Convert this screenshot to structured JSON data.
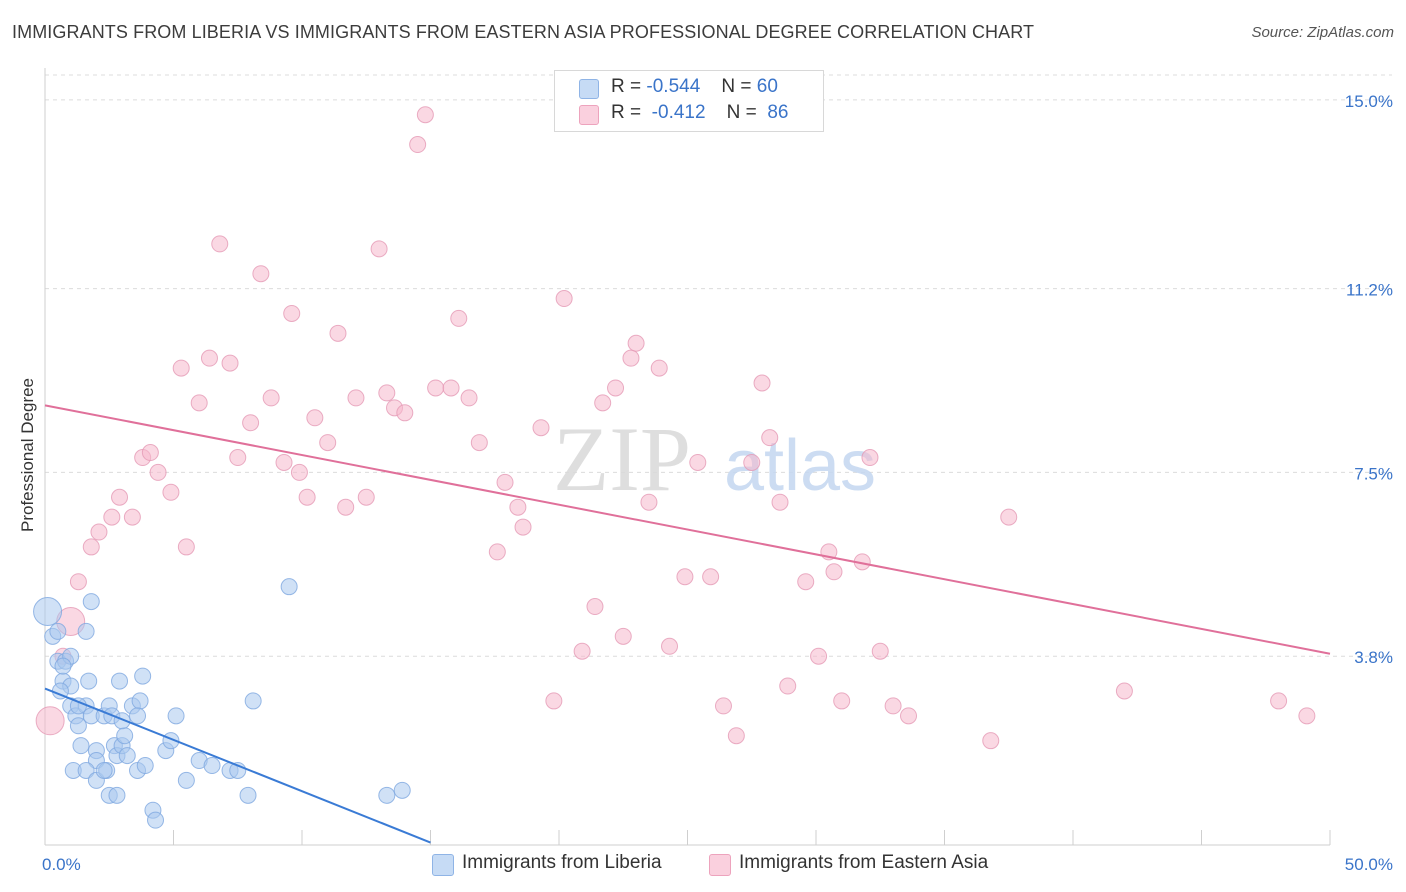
{
  "title": "IMMIGRANTS FROM LIBERIA VS IMMIGRANTS FROM EASTERN ASIA PROFESSIONAL DEGREE CORRELATION CHART",
  "source": "Source: ZipAtlas.com",
  "watermark": {
    "zip": "ZIP",
    "atlas": "atlas"
  },
  "legend": {
    "r_label": "R =",
    "n_label": "N =",
    "rows": [
      {
        "r": "-0.544",
        "n": "60",
        "color": "#a9c8ef"
      },
      {
        "r": "-0.412",
        "n": "86",
        "color": "#f5b8cc"
      }
    ]
  },
  "bottom_legend": [
    {
      "label": "Immigrants from Liberia",
      "color": "#a9c8ef"
    },
    {
      "label": "Immigrants from Eastern Asia",
      "color": "#f5b8cc"
    }
  ],
  "chart_data": {
    "type": "scatter",
    "ylabel": "Professional Degree",
    "xlim": [
      0,
      50
    ],
    "ylim": [
      0,
      15.5
    ],
    "x_tick_labels": [
      {
        "value": 0,
        "label": "0.0%"
      },
      {
        "value": 50,
        "label": "50.0%"
      }
    ],
    "y_tick_labels": [
      {
        "value": 3.8,
        "label": "3.8%"
      },
      {
        "value": 7.5,
        "label": "7.5%"
      },
      {
        "value": 11.2,
        "label": "11.2%"
      },
      {
        "value": 15.0,
        "label": "15.0%"
      }
    ],
    "grid": true,
    "colors": {
      "liberia": "#3a7bd5",
      "liberia_fill": "#a9c8ef",
      "easia": "#e0709a",
      "easia_fill": "#f5b8cc",
      "tick_text": "#3a74c9"
    },
    "series": [
      {
        "name": "Immigrants from Liberia",
        "points": [
          [
            0.1,
            4.7
          ],
          [
            0.3,
            4.2
          ],
          [
            0.5,
            4.3
          ],
          [
            0.5,
            3.7
          ],
          [
            0.8,
            3.7
          ],
          [
            1.0,
            3.8
          ],
          [
            0.7,
            3.3
          ],
          [
            1.0,
            3.2
          ],
          [
            0.6,
            3.1
          ],
          [
            1.8,
            4.9
          ],
          [
            1.6,
            4.3
          ],
          [
            1.0,
            2.8
          ],
          [
            1.2,
            2.6
          ],
          [
            1.3,
            2.4
          ],
          [
            1.6,
            2.8
          ],
          [
            1.8,
            2.6
          ],
          [
            1.7,
            3.3
          ],
          [
            1.4,
            2.0
          ],
          [
            1.1,
            1.5
          ],
          [
            2.0,
            1.9
          ],
          [
            2.0,
            1.7
          ],
          [
            1.6,
            1.5
          ],
          [
            2.0,
            1.3
          ],
          [
            2.4,
            1.5
          ],
          [
            2.5,
            1.0
          ],
          [
            2.3,
            2.6
          ],
          [
            2.5,
            2.8
          ],
          [
            2.6,
            2.6
          ],
          [
            2.3,
            1.5
          ],
          [
            2.7,
            2.0
          ],
          [
            2.8,
            1.8
          ],
          [
            3.0,
            2.0
          ],
          [
            3.1,
            2.2
          ],
          [
            3.2,
            1.8
          ],
          [
            2.9,
            3.3
          ],
          [
            3.4,
            2.8
          ],
          [
            3.7,
            2.9
          ],
          [
            3.6,
            2.6
          ],
          [
            3.8,
            3.4
          ],
          [
            3.6,
            1.5
          ],
          [
            3.9,
            1.6
          ],
          [
            4.2,
            0.7
          ],
          [
            4.3,
            0.5
          ],
          [
            4.7,
            1.9
          ],
          [
            4.9,
            2.1
          ],
          [
            5.1,
            2.6
          ],
          [
            5.5,
            1.3
          ],
          [
            6.0,
            1.7
          ],
          [
            6.5,
            1.6
          ],
          [
            7.2,
            1.5
          ],
          [
            7.5,
            1.5
          ],
          [
            7.9,
            1.0
          ],
          [
            8.1,
            2.9
          ],
          [
            9.5,
            5.2
          ],
          [
            3.0,
            2.5
          ],
          [
            2.8,
            1.0
          ],
          [
            13.3,
            1.0
          ],
          [
            13.9,
            1.1
          ],
          [
            1.3,
            2.8
          ],
          [
            0.7,
            3.6
          ]
        ]
      },
      {
        "name": "Immigrants from Eastern Asia",
        "points": [
          [
            0.2,
            2.5
          ],
          [
            0.7,
            3.8
          ],
          [
            1.0,
            4.5
          ],
          [
            1.3,
            5.3
          ],
          [
            1.8,
            6.0
          ],
          [
            2.1,
            6.3
          ],
          [
            2.6,
            6.6
          ],
          [
            2.9,
            7.0
          ],
          [
            3.4,
            6.6
          ],
          [
            3.8,
            7.8
          ],
          [
            4.1,
            7.9
          ],
          [
            4.4,
            7.5
          ],
          [
            4.9,
            7.1
          ],
          [
            5.3,
            9.6
          ],
          [
            5.5,
            6.0
          ],
          [
            6.0,
            8.9
          ],
          [
            6.4,
            9.8
          ],
          [
            6.8,
            12.1
          ],
          [
            7.2,
            9.7
          ],
          [
            7.5,
            7.8
          ],
          [
            8.0,
            8.5
          ],
          [
            8.4,
            11.5
          ],
          [
            8.8,
            9.0
          ],
          [
            9.3,
            7.7
          ],
          [
            9.6,
            10.7
          ],
          [
            9.9,
            7.5
          ],
          [
            10.2,
            7.0
          ],
          [
            10.5,
            8.6
          ],
          [
            11.0,
            8.1
          ],
          [
            11.4,
            10.3
          ],
          [
            11.7,
            6.8
          ],
          [
            12.1,
            9.0
          ],
          [
            12.5,
            7.0
          ],
          [
            13.0,
            12.0
          ],
          [
            13.3,
            9.1
          ],
          [
            13.6,
            8.8
          ],
          [
            14.0,
            8.7
          ],
          [
            14.5,
            14.1
          ],
          [
            14.8,
            14.7
          ],
          [
            15.2,
            9.2
          ],
          [
            15.8,
            9.2
          ],
          [
            16.1,
            10.6
          ],
          [
            16.5,
            9.0
          ],
          [
            16.9,
            8.1
          ],
          [
            17.6,
            5.9
          ],
          [
            17.9,
            7.3
          ],
          [
            18.4,
            6.8
          ],
          [
            18.6,
            6.4
          ],
          [
            19.3,
            8.4
          ],
          [
            19.8,
            2.9
          ],
          [
            20.2,
            11.0
          ],
          [
            20.9,
            3.9
          ],
          [
            21.4,
            4.8
          ],
          [
            21.7,
            8.9
          ],
          [
            22.2,
            9.2
          ],
          [
            22.5,
            4.2
          ],
          [
            22.8,
            9.8
          ],
          [
            23.0,
            10.1
          ],
          [
            23.5,
            6.9
          ],
          [
            23.9,
            9.6
          ],
          [
            24.3,
            4.0
          ],
          [
            24.9,
            5.4
          ],
          [
            25.4,
            7.7
          ],
          [
            25.9,
            5.4
          ],
          [
            26.4,
            2.8
          ],
          [
            26.9,
            2.2
          ],
          [
            27.5,
            7.7
          ],
          [
            27.9,
            9.3
          ],
          [
            28.2,
            8.2
          ],
          [
            28.6,
            6.9
          ],
          [
            28.9,
            3.2
          ],
          [
            29.6,
            5.3
          ],
          [
            30.1,
            3.8
          ],
          [
            30.5,
            5.9
          ],
          [
            30.7,
            5.5
          ],
          [
            31.0,
            2.9
          ],
          [
            31.8,
            5.7
          ],
          [
            32.1,
            7.8
          ],
          [
            32.5,
            3.9
          ],
          [
            33.0,
            2.8
          ],
          [
            33.6,
            2.6
          ],
          [
            36.8,
            2.1
          ],
          [
            37.5,
            6.6
          ],
          [
            42.0,
            3.1
          ],
          [
            48.0,
            2.9
          ],
          [
            49.1,
            2.6
          ]
        ]
      }
    ],
    "trend_lines": [
      {
        "series": "Immigrants from Liberia",
        "x": [
          0,
          15
        ],
        "y": [
          3.15,
          0.05
        ]
      },
      {
        "series": "Immigrants from Eastern Asia",
        "x": [
          0,
          50
        ],
        "y": [
          8.85,
          3.85
        ]
      }
    ]
  }
}
